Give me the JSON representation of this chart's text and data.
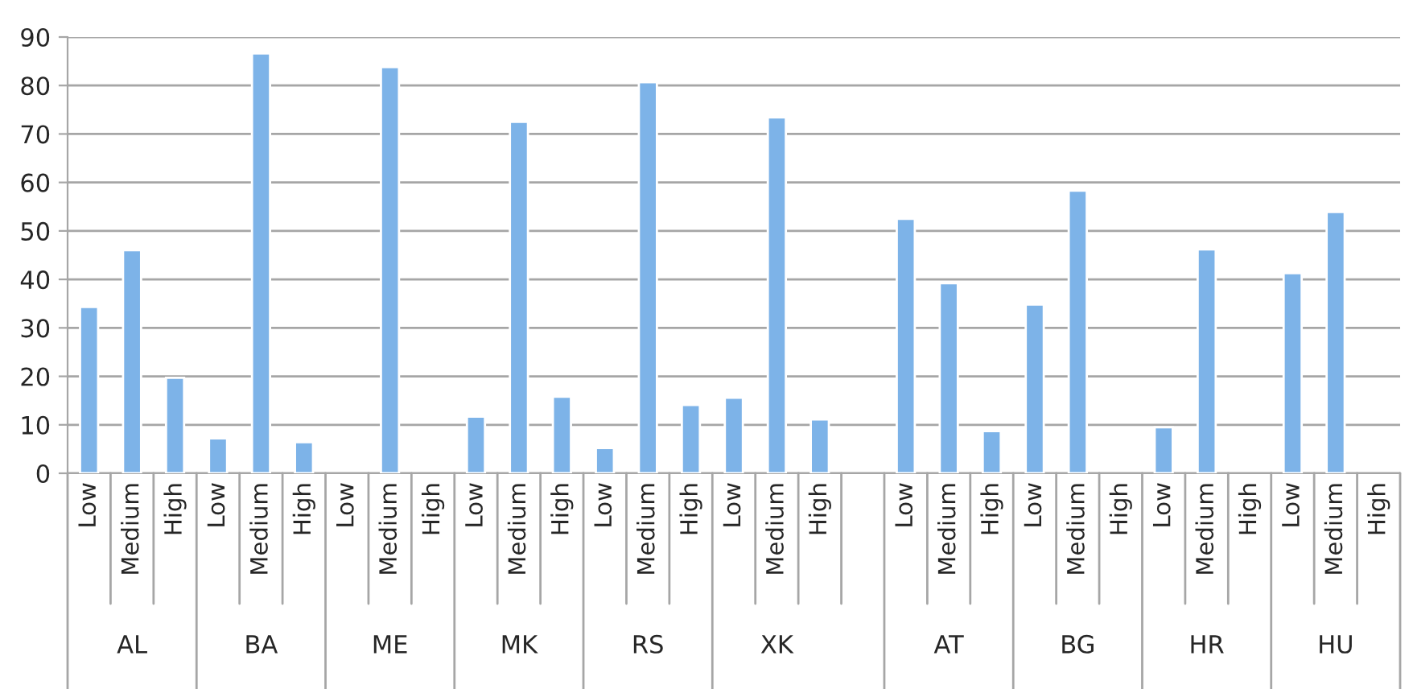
{
  "chart_data": {
    "type": "bar",
    "categories": [
      "Low",
      "Medium",
      "High",
      "Low",
      "Medium",
      "High",
      "Low",
      "Medium",
      "High",
      "Low",
      "Medium",
      "High",
      "Low",
      "Medium",
      "High",
      "Low",
      "Medium",
      "High",
      null,
      "Low",
      "Medium",
      "High",
      "Low",
      "Medium",
      "High",
      "Low",
      "Medium",
      "High",
      "Low",
      "Medium",
      "High"
    ],
    "values": [
      34.3,
      46.0,
      19.7,
      7.2,
      86.6,
      6.4,
      null,
      83.8,
      null,
      11.7,
      72.5,
      15.8,
      5.2,
      80.7,
      14.1,
      15.6,
      73.4,
      11.1,
      null,
      52.5,
      39.2,
      8.7,
      34.8,
      58.3,
      null,
      9.5,
      46.2,
      null,
      41.3,
      53.9,
      null
    ],
    "color": "#7db3e8",
    "annotations": [
      "AL",
      "BA",
      "ME",
      "MK",
      "RS",
      "XK",
      "AT",
      "BG",
      "HR",
      "HU"
    ],
    "ylim": [
      0,
      90
    ],
    "yticks": [
      0,
      10,
      20,
      30,
      40,
      50,
      60,
      70,
      80,
      90
    ],
    "grid": "y",
    "legend": false
  }
}
